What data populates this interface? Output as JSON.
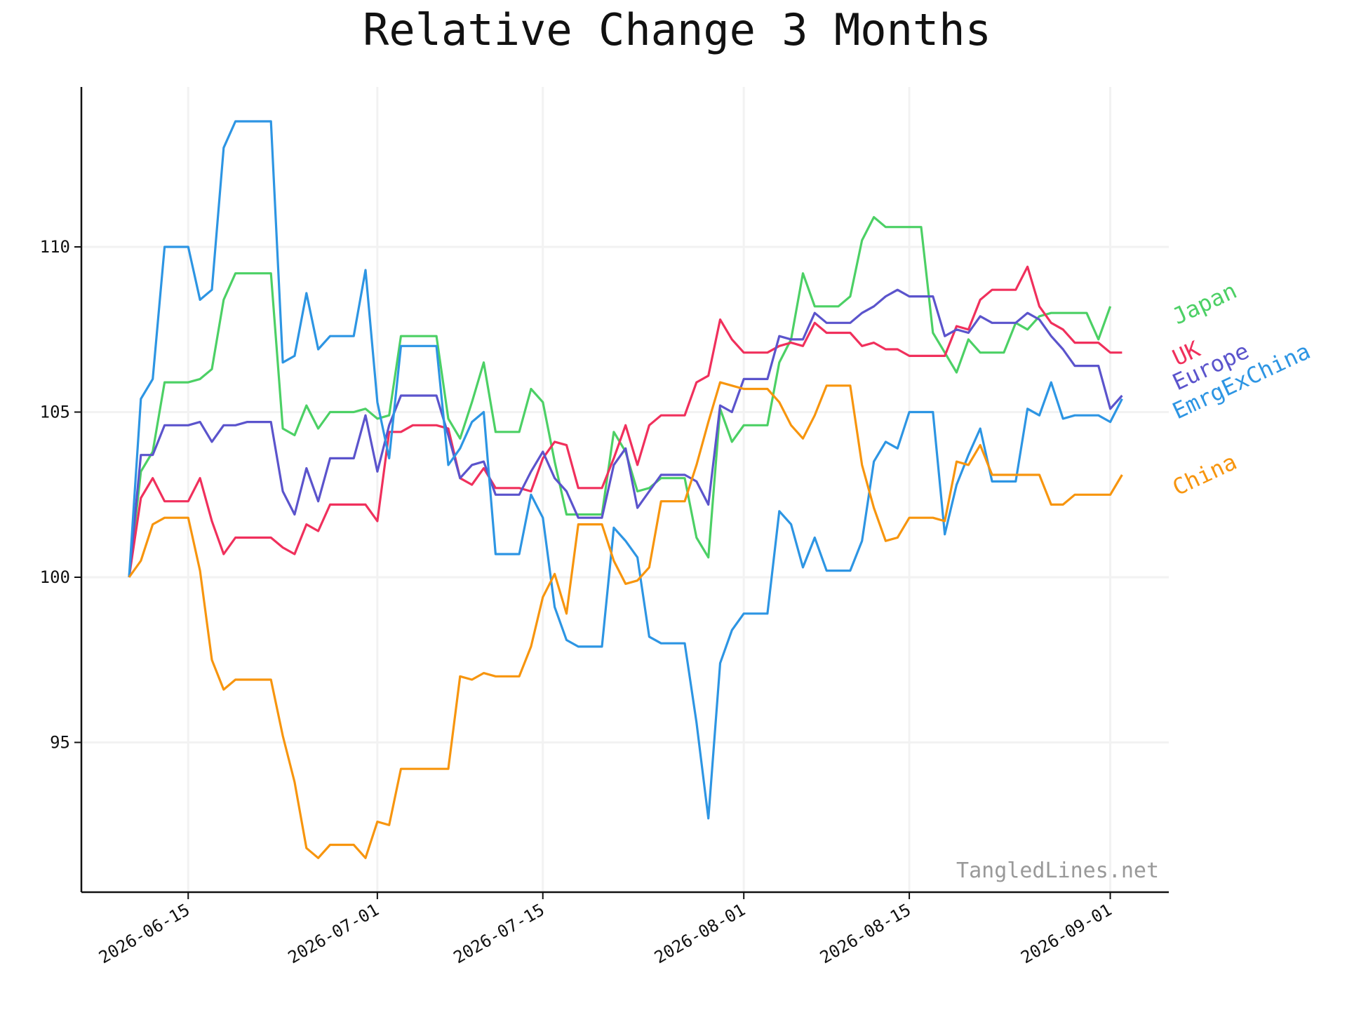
{
  "chart_data": {
    "type": "line",
    "title": "Relative Change 3 Months",
    "xlabel": "",
    "ylabel": "",
    "watermark": "TangledLines.net",
    "grid": true,
    "legend_placement": "right (labels at line ends)",
    "x_start": "2026-06-10",
    "x_ticks": [
      "2026-06-15",
      "2026-07-01",
      "2026-07-15",
      "2026-08-01",
      "2026-08-15",
      "2026-09-01"
    ],
    "y_ticks": [
      95,
      100,
      105,
      110
    ],
    "ylim": [
      90.5,
      114.9
    ],
    "x": [
      "2026-06-10",
      "2026-06-11",
      "2026-06-12",
      "2026-06-13",
      "2026-06-14",
      "2026-06-15",
      "2026-06-16",
      "2026-06-17",
      "2026-06-18",
      "2026-06-19",
      "2026-06-20",
      "2026-06-21",
      "2026-06-22",
      "2026-06-23",
      "2026-06-24",
      "2026-06-25",
      "2026-06-26",
      "2026-06-27",
      "2026-06-28",
      "2026-06-29",
      "2026-06-30",
      "2026-07-01",
      "2026-07-02",
      "2026-07-03",
      "2026-07-04",
      "2026-07-05",
      "2026-07-06",
      "2026-07-07",
      "2026-07-08",
      "2026-07-09",
      "2026-07-10",
      "2026-07-11",
      "2026-07-12",
      "2026-07-13",
      "2026-07-14",
      "2026-07-15",
      "2026-07-16",
      "2026-07-17",
      "2026-07-18",
      "2026-07-19",
      "2026-07-20",
      "2026-07-21",
      "2026-07-22",
      "2026-07-23",
      "2026-07-24",
      "2026-07-25",
      "2026-07-26",
      "2026-07-27",
      "2026-07-28",
      "2026-07-29",
      "2026-07-30",
      "2026-07-31",
      "2026-08-01",
      "2026-08-02",
      "2026-08-03",
      "2026-08-04",
      "2026-08-05",
      "2026-08-06",
      "2026-08-07",
      "2026-08-08",
      "2026-08-09",
      "2026-08-10",
      "2026-08-11",
      "2026-08-12",
      "2026-08-13",
      "2026-08-14",
      "2026-08-15",
      "2026-08-16",
      "2026-08-17",
      "2026-08-18",
      "2026-08-19",
      "2026-08-20",
      "2026-08-21",
      "2026-08-22",
      "2026-08-23",
      "2026-08-24",
      "2026-08-25",
      "2026-08-26",
      "2026-08-27",
      "2026-08-28",
      "2026-08-29",
      "2026-08-30",
      "2026-08-31",
      "2026-09-01",
      "2026-09-02"
    ],
    "series": [
      {
        "name": "Japan",
        "color": "#4cd065",
        "values": [
          100,
          103.2,
          103.8,
          105.9,
          105.9,
          105.9,
          106.0,
          106.3,
          108.4,
          109.2,
          109.2,
          109.2,
          109.2,
          104.5,
          104.3,
          105.2,
          104.5,
          105.0,
          105.0,
          105.0,
          105.1,
          104.8,
          104.9,
          107.3,
          107.3,
          107.3,
          107.3,
          104.8,
          104.2,
          105.3,
          106.5,
          104.4,
          104.4,
          104.4,
          105.7,
          105.3,
          103.5,
          101.9,
          101.9,
          101.9,
          101.9,
          104.4,
          103.8,
          102.6,
          102.7,
          103.0,
          103.0,
          103.0,
          101.2,
          100.6,
          105.1,
          104.1,
          104.6,
          104.6,
          104.6,
          106.5,
          107.2,
          109.2,
          108.2,
          108.2,
          108.2,
          108.5,
          110.2,
          110.9,
          110.6,
          110.6,
          110.6,
          110.6,
          107.4,
          106.8,
          106.2,
          107.2,
          106.8,
          106.8,
          106.8,
          107.7,
          107.5,
          107.9,
          108.0,
          108.0,
          108.0,
          108.0,
          107.2,
          108.2,
          null
        ]
      },
      {
        "name": "UK",
        "color": "#f0305c",
        "values": [
          100,
          102.4,
          103.0,
          102.3,
          102.3,
          102.3,
          103.0,
          101.7,
          100.7,
          101.2,
          101.2,
          101.2,
          101.2,
          100.9,
          100.7,
          101.6,
          101.4,
          102.2,
          102.2,
          102.2,
          102.2,
          101.7,
          104.4,
          104.4,
          104.6,
          104.6,
          104.6,
          104.5,
          103.0,
          102.8,
          103.3,
          102.7,
          102.7,
          102.7,
          102.6,
          103.6,
          104.1,
          104.0,
          102.7,
          102.7,
          102.7,
          103.6,
          104.6,
          103.4,
          104.6,
          104.9,
          104.9,
          104.9,
          105.9,
          106.1,
          107.8,
          107.2,
          106.8,
          106.8,
          106.8,
          107.0,
          107.1,
          107.0,
          107.7,
          107.4,
          107.4,
          107.4,
          107.0,
          107.1,
          106.9,
          106.9,
          106.7,
          106.7,
          106.7,
          106.7,
          107.6,
          107.5,
          108.4,
          108.7,
          108.7,
          108.7,
          109.4,
          108.2,
          107.7,
          107.5,
          107.1,
          107.1,
          107.1,
          106.8,
          106.8
        ]
      },
      {
        "name": "Europe",
        "color": "#5b54cc",
        "values": [
          100,
          103.7,
          103.7,
          104.6,
          104.6,
          104.6,
          104.7,
          104.1,
          104.6,
          104.6,
          104.7,
          104.7,
          104.7,
          102.6,
          101.9,
          103.3,
          102.3,
          103.6,
          103.6,
          103.6,
          104.9,
          103.2,
          104.6,
          105.5,
          105.5,
          105.5,
          105.5,
          104.3,
          103.0,
          103.4,
          103.5,
          102.5,
          102.5,
          102.5,
          103.2,
          103.8,
          103.0,
          102.6,
          101.8,
          101.8,
          101.8,
          103.4,
          103.9,
          102.1,
          102.6,
          103.1,
          103.1,
          103.1,
          102.9,
          102.2,
          105.2,
          105.0,
          106.0,
          106.0,
          106.0,
          107.3,
          107.2,
          107.2,
          108.0,
          107.7,
          107.7,
          107.7,
          108.0,
          108.2,
          108.5,
          108.7,
          108.5,
          108.5,
          108.5,
          107.3,
          107.5,
          107.4,
          107.9,
          107.7,
          107.7,
          107.7,
          108.0,
          107.8,
          107.3,
          106.9,
          106.4,
          106.4,
          106.4,
          105.1,
          105.5
        ]
      },
      {
        "name": "EmrgExChina",
        "color": "#2d95e3",
        "values": [
          100,
          105.4,
          106.0,
          110.0,
          110.0,
          110.0,
          108.4,
          108.7,
          113.0,
          113.8,
          113.8,
          113.8,
          113.8,
          106.5,
          106.7,
          108.6,
          106.9,
          107.3,
          107.3,
          107.3,
          109.3,
          105.3,
          103.6,
          107.0,
          107.0,
          107.0,
          107.0,
          103.4,
          103.9,
          104.7,
          105.0,
          100.7,
          100.7,
          100.7,
          102.5,
          101.8,
          99.1,
          98.1,
          97.9,
          97.9,
          97.9,
          101.5,
          101.1,
          100.6,
          98.2,
          98.0,
          98.0,
          98.0,
          95.6,
          92.7,
          97.4,
          98.4,
          98.9,
          98.9,
          98.9,
          102.0,
          101.6,
          100.3,
          101.2,
          100.2,
          100.2,
          100.2,
          101.1,
          103.5,
          104.1,
          103.9,
          105.0,
          105.0,
          105.0,
          101.3,
          102.8,
          103.7,
          104.5,
          102.9,
          102.9,
          102.9,
          105.1,
          104.9,
          105.9,
          104.8,
          104.9,
          104.9,
          104.9,
          104.7,
          105.4
        ]
      },
      {
        "name": "China",
        "color": "#f7950e",
        "values": [
          100,
          100.5,
          101.6,
          101.8,
          101.8,
          101.8,
          100.2,
          97.5,
          96.6,
          96.9,
          96.9,
          96.9,
          96.9,
          95.2,
          93.8,
          91.8,
          91.5,
          91.9,
          91.9,
          91.9,
          91.5,
          92.6,
          92.5,
          94.2,
          94.2,
          94.2,
          94.2,
          94.2,
          97.0,
          96.9,
          97.1,
          97.0,
          97.0,
          97.0,
          97.9,
          99.4,
          100.1,
          98.9,
          101.6,
          101.6,
          101.6,
          100.5,
          99.8,
          99.9,
          100.3,
          102.3,
          102.3,
          102.3,
          103.4,
          104.7,
          105.9,
          105.8,
          105.7,
          105.7,
          105.7,
          105.3,
          104.6,
          104.2,
          104.9,
          105.8,
          105.8,
          105.8,
          103.4,
          102.1,
          101.1,
          101.2,
          101.8,
          101.8,
          101.8,
          101.7,
          103.5,
          103.4,
          104.0,
          103.1,
          103.1,
          103.1,
          103.1,
          103.1,
          102.2,
          102.2,
          102.5,
          102.5,
          102.5,
          102.5,
          103.1
        ]
      }
    ],
    "label_order_note_for_display": ""
  }
}
